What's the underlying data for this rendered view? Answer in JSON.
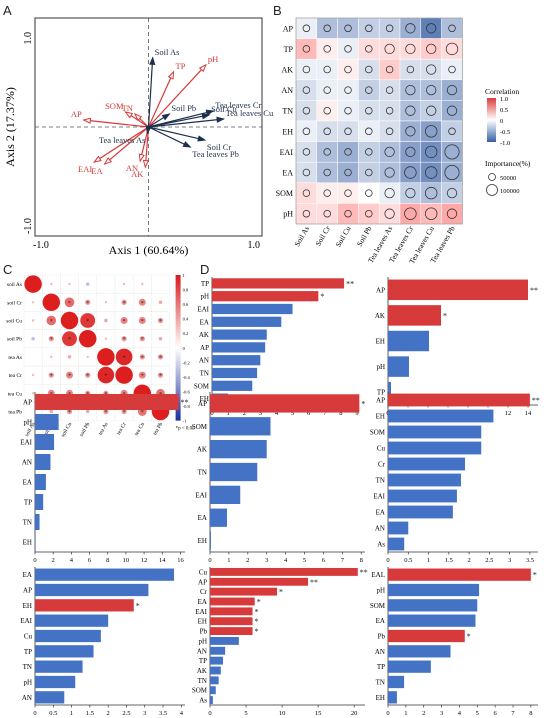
{
  "panels": {
    "A": "A",
    "B": "B",
    "C": "C",
    "D": "D"
  },
  "panelA": {
    "xlabel": "Axis 1 (60.64%)",
    "ylabel": "Axis 2 (17.37%)",
    "xlim": [
      -1.0,
      1.0
    ],
    "ylim": [
      -1.0,
      1.0
    ],
    "corner_ticks": {
      "xmin": "-1.0",
      "xmax": "1.0",
      "ymax": "1.0",
      "ymin": "-1.0"
    },
    "arrows": [
      {
        "name": "TP",
        "x": 0.24,
        "y": 0.55,
        "color": "#d63a3a"
      },
      {
        "name": "pH",
        "x": 0.55,
        "y": 0.62,
        "color": "#d63a3a"
      },
      {
        "name": "SOM",
        "x": -0.22,
        "y": 0.15,
        "color": "#d63a3a"
      },
      {
        "name": "TN",
        "x": -0.13,
        "y": 0.13,
        "color": "#d63a3a"
      },
      {
        "name": "AP",
        "x": -0.62,
        "y": 0.07,
        "color": "#d63a3a"
      },
      {
        "name": "EAI",
        "x": -0.52,
        "y": -0.35,
        "color": "#d63a3a"
      },
      {
        "name": "EA",
        "x": -0.42,
        "y": -0.37,
        "color": "#d63a3a"
      },
      {
        "name": "AN",
        "x": -0.08,
        "y": -0.34,
        "color": "#d63a3a"
      },
      {
        "name": "AK",
        "x": -0.03,
        "y": -0.4,
        "color": "#d63a3a"
      },
      {
        "name": "Soil As",
        "x": 0.04,
        "y": 0.69,
        "color": "#1e2f4d"
      },
      {
        "name": "Soil Pb",
        "x": 0.2,
        "y": 0.13,
        "color": "#1e2f4d"
      },
      {
        "name": "Tea leaves Cr",
        "x": 0.62,
        "y": 0.16,
        "color": "#1e2f4d"
      },
      {
        "name": "Soil Cu",
        "x": 0.58,
        "y": 0.12,
        "color": "#1e2f4d"
      },
      {
        "name": "Tea leaves Cu",
        "x": 0.72,
        "y": 0.08,
        "color": "#1e2f4d"
      },
      {
        "name": "Tea leaves As",
        "x": -0.01,
        "y": -0.06,
        "color": "#1e2f4d"
      },
      {
        "name": "Soil Cr",
        "x": 0.54,
        "y": -0.13,
        "color": "#1e2f4d"
      },
      {
        "name": "Tea leaves Pb",
        "x": 0.4,
        "y": -0.2,
        "color": "#1e2f4d"
      }
    ]
  },
  "panelB": {
    "rows": [
      "AP",
      "TP",
      "AK",
      "AN",
      "TN",
      "EH",
      "EAI",
      "EA",
      "SOM",
      "pH"
    ],
    "cols": [
      "Soil As",
      "Soil Cr",
      "Soil Cu",
      "Soil Pb",
      "Tea leaves As",
      "Tea leaves Cr",
      "Tea leaves Cu",
      "Tea leaves Pb"
    ],
    "values": [
      [
        -0.1,
        -0.4,
        -0.4,
        -0.3,
        -0.3,
        -0.5,
        -0.8,
        -0.4
      ],
      [
        0.4,
        0.1,
        -0.1,
        0.2,
        0.2,
        0.2,
        0.3,
        0.2
      ],
      [
        -0.1,
        -0.1,
        0.1,
        -0.2,
        0.3,
        -0.2,
        -0.2,
        -0.1
      ],
      [
        -0.2,
        -0.1,
        -0.1,
        -0.3,
        -0.2,
        -0.4,
        -0.4,
        -0.5
      ],
      [
        -0.2,
        0.1,
        -0.1,
        -0.2,
        -0.2,
        -0.4,
        -0.3,
        -0.5
      ],
      [
        -0.1,
        -0.2,
        -0.2,
        -0.1,
        -0.2,
        -0.5,
        -0.6,
        -0.3
      ],
      [
        -0.2,
        -0.4,
        -0.5,
        -0.3,
        -0.4,
        -0.6,
        -0.7,
        -0.5
      ],
      [
        -0.2,
        -0.4,
        -0.5,
        -0.3,
        -0.4,
        -0.6,
        -0.7,
        -0.5
      ],
      [
        0.2,
        0.1,
        0.1,
        0.0,
        -0.1,
        -0.3,
        -0.4,
        -0.3
      ],
      [
        0.2,
        0.2,
        0.4,
        0.3,
        0.2,
        0.5,
        0.4,
        0.5
      ]
    ],
    "importance": [
      [
        20000,
        20000,
        20000,
        20000,
        20000,
        40000,
        40000,
        20000
      ],
      [
        20000,
        20000,
        20000,
        20000,
        40000,
        40000,
        40000,
        60000
      ],
      [
        20000,
        20000,
        20000,
        20000,
        20000,
        20000,
        40000,
        20000
      ],
      [
        20000,
        20000,
        20000,
        20000,
        20000,
        40000,
        40000,
        40000
      ],
      [
        20000,
        20000,
        20000,
        20000,
        20000,
        40000,
        40000,
        40000
      ],
      [
        20000,
        20000,
        20000,
        20000,
        20000,
        40000,
        60000,
        20000
      ],
      [
        20000,
        20000,
        20000,
        20000,
        40000,
        40000,
        60000,
        90000
      ],
      [
        20000,
        20000,
        20000,
        20000,
        40000,
        60000,
        60000,
        90000
      ],
      [
        20000,
        20000,
        20000,
        20000,
        40000,
        40000,
        60000,
        40000
      ],
      [
        20000,
        20000,
        20000,
        20000,
        40000,
        60000,
        60000,
        40000
      ]
    ],
    "legend_title": "Correlation",
    "legend_ticks": [
      "1.0",
      "0.5",
      "0",
      "-0.5",
      "-1.0"
    ],
    "imp_title": "Importance(%)",
    "imp_labels": [
      "50000",
      "100000"
    ]
  },
  "panelC": {
    "labels": [
      "soil As",
      "soil Cr",
      "soil Cu",
      "soil Pb",
      "tea As",
      "tea Cr",
      "tea Cu",
      "tea Pb"
    ],
    "values": [
      [
        1.0,
        0.1,
        0.1,
        -0.2,
        0.0,
        0.1,
        0.1,
        0.0
      ],
      [
        0.1,
        1.0,
        0.55,
        0.3,
        0.1,
        0.3,
        0.4,
        0.2
      ],
      [
        0.1,
        0.55,
        1.0,
        0.85,
        0.2,
        0.4,
        0.4,
        0.3
      ],
      [
        -0.2,
        0.3,
        0.85,
        1.0,
        0.1,
        0.3,
        0.3,
        0.2
      ],
      [
        0.0,
        0.1,
        0.2,
        0.1,
        1.0,
        0.95,
        0.3,
        0.3
      ],
      [
        0.1,
        0.3,
        0.4,
        0.3,
        0.95,
        1.0,
        0.4,
        0.3
      ],
      [
        0.1,
        0.4,
        0.4,
        0.3,
        0.3,
        0.4,
        1.0,
        0.5
      ],
      [
        0.0,
        0.2,
        0.3,
        0.2,
        0.3,
        0.3,
        0.5,
        1.0
      ]
    ],
    "scale_ticks": [
      "1",
      "0.8",
      "0.6",
      "0.4",
      "0.2",
      "0",
      "-0.2",
      "-0.4",
      "-0.6",
      "-0.8",
      "-1"
    ],
    "footnote": "*p < 0.05"
  },
  "panelD": [
    {
      "categories": [
        "TP",
        "pH",
        "EAI",
        "EA",
        "AK",
        "AP",
        "AN",
        "TN",
        "SOM",
        "EH"
      ],
      "values": [
        8.2,
        6.6,
        5.0,
        4.3,
        3.4,
        3.3,
        3.0,
        2.8,
        2.5,
        1.0
      ],
      "sig": [
        "**",
        "*",
        "",
        "",
        "",
        "",
        "",
        "",
        "",
        ""
      ],
      "xticks": [
        0,
        1,
        2,
        3,
        4,
        5,
        6,
        7,
        8,
        9
      ],
      "xmax": 9
    },
    {
      "categories": [
        "AP",
        "AK",
        "EH",
        "pH",
        "TP"
      ],
      "values": [
        14.0,
        5.3,
        4.1,
        2.1,
        0.3
      ],
      "sig": [
        "**",
        "*",
        "",
        "",
        ""
      ],
      "xticks": [
        0,
        2,
        4,
        6,
        8,
        10,
        12,
        14
      ],
      "xmax": 15
    },
    {
      "categories": [
        "AP",
        "pH",
        "EAI",
        "AN",
        "EA",
        "TP",
        "TN",
        "EH"
      ],
      "values": [
        15.8,
        2.6,
        2.1,
        1.7,
        1.2,
        0.9,
        0.5,
        0.05
      ],
      "sig": [
        "**",
        "",
        "",
        "",
        "",
        "",
        "",
        ""
      ],
      "xticks": [
        0,
        2,
        4,
        6,
        8,
        10,
        12,
        14,
        16
      ],
      "xmax": 16.5
    },
    {
      "categories": [
        "AP",
        "SOM",
        "AK",
        "TN",
        "EAI",
        "EA",
        "EH"
      ],
      "values": [
        7.9,
        3.2,
        3.0,
        2.5,
        1.6,
        0.9,
        0.05
      ],
      "sig": [
        "*",
        "",
        "",
        "",
        "",
        "",
        ""
      ],
      "xticks": [
        0,
        1,
        2,
        3,
        4,
        5,
        6,
        7,
        8
      ],
      "xmax": 8.2
    },
    {
      "categories": [
        "AP",
        "EH",
        "SOM",
        "Cu",
        "Cr",
        "TN",
        "EAI",
        "EA",
        "AN",
        "As"
      ],
      "values": [
        3.5,
        2.6,
        2.3,
        2.3,
        1.9,
        1.8,
        1.7,
        1.6,
        0.5,
        0.4
      ],
      "sig": [
        "**",
        "",
        "",
        "",
        "",
        "",
        "",
        "",
        "",
        ""
      ],
      "xticks": [
        0,
        0.5,
        1,
        1.5,
        2,
        2.5,
        3,
        3.5
      ],
      "xmax": 3.7
    },
    {
      "categories": [
        "EA",
        "AP",
        "EH",
        "EAI",
        "Cu",
        "TP",
        "TN",
        "pH",
        "AN"
      ],
      "values": [
        3.8,
        3.1,
        2.7,
        2.0,
        1.8,
        1.6,
        1.3,
        1.1,
        0.8
      ],
      "sig": [
        "",
        "",
        "*",
        "",
        "",
        "",
        "",
        "",
        ""
      ],
      "xticks": [
        0,
        0.5,
        1,
        1.5,
        2,
        2.5,
        3,
        3.5,
        4
      ],
      "xmax": 4.1
    },
    {
      "categories": [
        "Cu",
        "AP",
        "Cr",
        "EA",
        "EAI",
        "EH",
        "Pb",
        "pH",
        "AN",
        "TP",
        "AK",
        "TN",
        "SOM",
        "As"
      ],
      "values": [
        20.5,
        13.6,
        9.3,
        6.2,
        5.9,
        5.9,
        5.9,
        4.0,
        2.1,
        1.8,
        1.5,
        1.2,
        0.8,
        0.4
      ],
      "sig": [
        "**",
        "**",
        "*",
        "*",
        "*",
        "*",
        "*",
        "",
        "",
        "",
        "",
        "",
        "",
        ""
      ],
      "xticks": [
        0,
        5,
        10,
        15,
        20
      ],
      "xmax": 21.5
    },
    {
      "categories": [
        "EAL",
        "pH",
        "SOM",
        "EA",
        "Pb",
        "AN",
        "TP",
        "TN",
        "EH"
      ],
      "values": [
        8.0,
        5.1,
        5.0,
        4.9,
        4.3,
        3.5,
        2.4,
        0.9,
        0.5
      ],
      "sig": [
        "*",
        "",
        "",
        "",
        "*",
        "",
        "",
        "",
        ""
      ],
      "xticks": [
        0,
        1,
        2,
        3,
        4,
        5,
        6,
        7,
        8
      ],
      "xmax": 8.4
    }
  ],
  "colors": {
    "red": "#d63a3a",
    "blue": "#4472c4",
    "navy": "#1e2f4d"
  }
}
